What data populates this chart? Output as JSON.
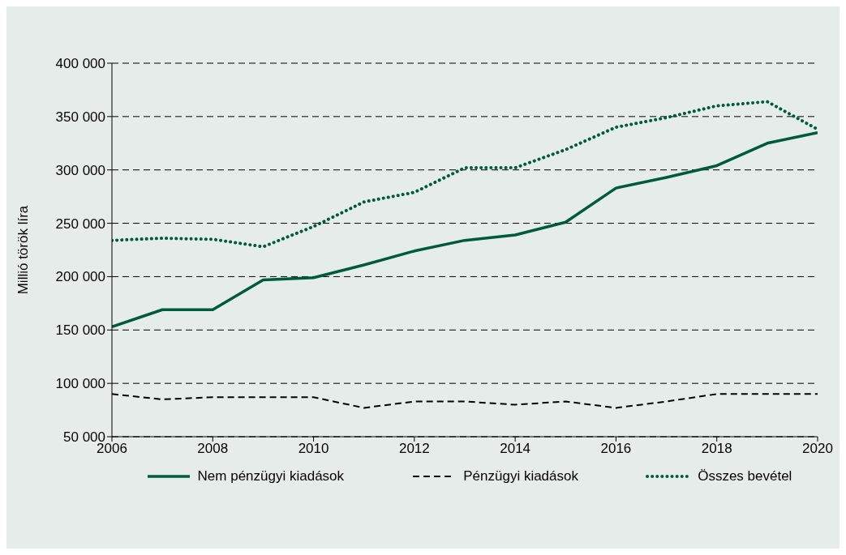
{
  "chart_data": {
    "type": "line",
    "ylabel": "Millió török líra",
    "x": [
      2006,
      2007,
      2008,
      2009,
      2010,
      2011,
      2012,
      2013,
      2014,
      2015,
      2016,
      2017,
      2018,
      2019,
      2020
    ],
    "series": [
      {
        "name": "Nem pénzügyi kiadások",
        "color": "#005a3c",
        "line_style": "solid",
        "values": [
          153000,
          169000,
          169000,
          197000,
          199000,
          211000,
          224000,
          234000,
          239000,
          251000,
          283000,
          293000,
          304000,
          325000,
          335000
        ]
      },
      {
        "name": "Pénzügyi kiadások",
        "color": "#000000",
        "line_style": "dashed",
        "values": [
          90000,
          85000,
          87000,
          87000,
          87000,
          77000,
          83000,
          83000,
          80000,
          83000,
          77000,
          83000,
          90000,
          90000,
          90000
        ]
      },
      {
        "name": "Összes bevétel",
        "color": "#005a3c",
        "line_style": "dotted",
        "values": [
          234000,
          236000,
          235000,
          228000,
          247000,
          270000,
          279000,
          302000,
          302000,
          319000,
          340000,
          349000,
          360000,
          364000,
          338000
        ]
      }
    ],
    "xlim": [
      2006,
      2020
    ],
    "xticks": [
      2006,
      2008,
      2010,
      2012,
      2014,
      2016,
      2018,
      2020
    ],
    "ylim": [
      50000,
      400000
    ],
    "yticks": [
      50000,
      100000,
      150000,
      200000,
      250000,
      300000,
      350000,
      400000
    ],
    "grid": "y",
    "legend": "bottom",
    "marker": "none"
  }
}
